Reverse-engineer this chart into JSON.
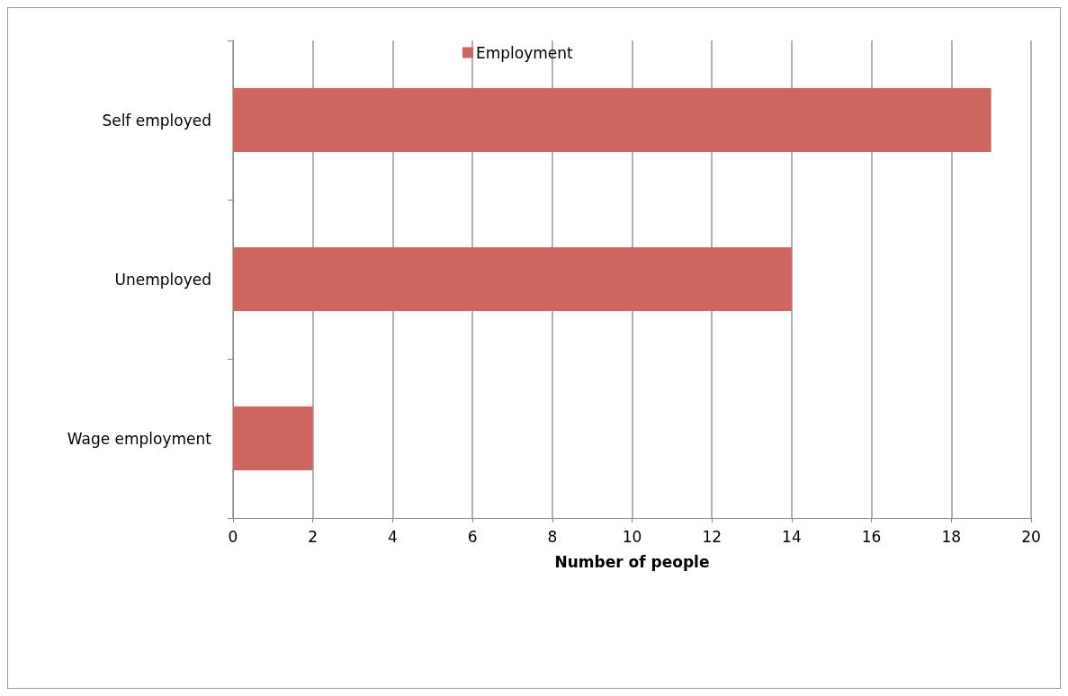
{
  "chart_data": {
    "type": "bar",
    "orientation": "horizontal",
    "xlabel": "Number of people",
    "categories": [
      "Self employed",
      "Unemployed",
      "Wage employment"
    ],
    "series": [
      {
        "name": "Employment",
        "color": "#cd6660",
        "values": [
          19,
          14,
          2
        ]
      }
    ],
    "xlim": [
      0,
      20
    ],
    "xticks": [
      0,
      2,
      4,
      6,
      8,
      10,
      12,
      14,
      16,
      18,
      20
    ],
    "grid": "x",
    "legend": "top"
  }
}
